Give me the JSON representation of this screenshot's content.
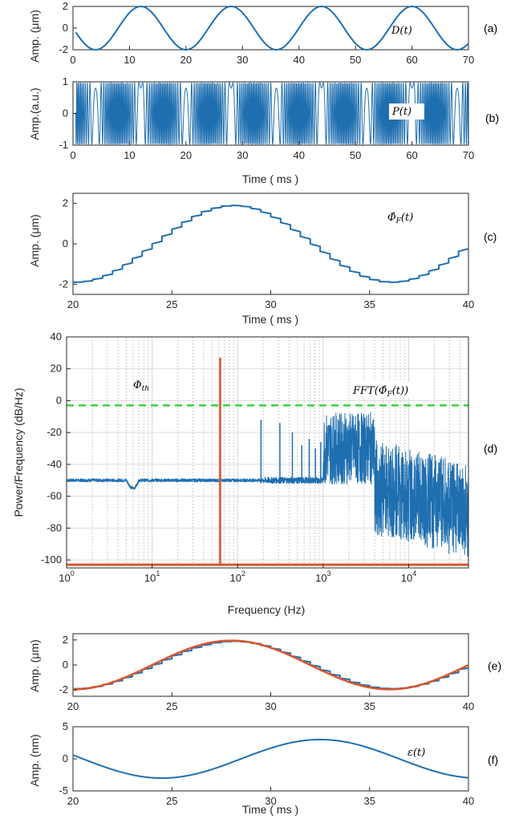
{
  "chart_data": [
    {
      "panel": "(a)",
      "type": "line",
      "annotation": "D(t)",
      "ylabel": "Amp. (μm)",
      "xlabel": "",
      "xlim": [
        0,
        70
      ],
      "ylim": [
        -2,
        2
      ],
      "xticks": [
        "0",
        "10",
        "20",
        "30",
        "40",
        "50",
        "60",
        "70"
      ],
      "yticks": [
        "2",
        "0",
        "-2"
      ],
      "series": [
        {
          "color": "#1f6fb0",
          "amplitude": 2,
          "period": 16,
          "peaks_at": [
            12,
            28,
            44,
            60
          ],
          "troughs_at": [
            4,
            20,
            36,
            52,
            68
          ]
        }
      ]
    },
    {
      "panel": "(b)",
      "type": "line",
      "annotation": "P(t)",
      "ylabel": "Amp.(a.u.)",
      "xlabel": "Time ( ms )",
      "xlim": [
        0,
        70
      ],
      "ylim": [
        -1,
        1
      ],
      "xticks": [
        "0",
        "10",
        "20",
        "30",
        "40",
        "50",
        "60",
        "70"
      ],
      "yticks": [
        "1",
        "0",
        "-1"
      ],
      "series": [
        {
          "color": "#1f6fb0",
          "description_values": {
            "amplitude": 1,
            "envelope_period": 16
          }
        }
      ]
    },
    {
      "panel": "(c)",
      "type": "line",
      "annotation": "Φ̂F(t)",
      "ylabel": "Amp. (μm)",
      "xlabel": "Time ( ms )",
      "xlim": [
        20,
        40
      ],
      "ylim": [
        -2.5,
        2.5
      ],
      "xticks": [
        "20",
        "25",
        "30",
        "35",
        "40"
      ],
      "yticks": [
        "2",
        "0",
        "-2"
      ],
      "series": [
        {
          "color": "#1f6fb0",
          "amplitude": 1.9,
          "period": 16,
          "peak_at": 28,
          "trough_at": 36
        }
      ]
    },
    {
      "panel": "(d)",
      "type": "line",
      "annotation": "FFT(Φ̂F(t))",
      "threshold_label": "Φth",
      "ylabel": "Power/Frequency (dB/Hz)",
      "xlabel": "Frequency (Hz)",
      "xscale": "log",
      "xlim": [
        1,
        50000
      ],
      "ylim": [
        -105,
        40
      ],
      "xticks": [
        "10",
        "10",
        "10",
        "10",
        "10"
      ],
      "xtick_exponents": [
        "0",
        "1",
        "2",
        "3",
        "4"
      ],
      "yticks": [
        "40",
        "20",
        "0",
        "-20",
        "-40",
        "-60",
        "-80",
        "-100"
      ],
      "threshold": {
        "value": -3,
        "color": "#39d23c",
        "style": "dashed"
      },
      "marker_line": {
        "frequency": 62.5,
        "top": 27,
        "baseline": -103,
        "color": "#d9542b"
      },
      "series": [
        {
          "color": "#1f6fb0",
          "noise_floor": -50,
          "harmonic_peaks": [
            [
              62.5,
              -50
            ],
            [
              187.5,
              -12
            ],
            [
              312,
              -14
            ],
            [
              437,
              -20
            ],
            [
              562,
              -28
            ],
            [
              1200,
              -18
            ],
            [
              2500,
              -14
            ],
            [
              3800,
              -16
            ]
          ]
        }
      ]
    },
    {
      "panel": "(e)",
      "type": "line",
      "ylabel": "Amp. (μm)",
      "xlabel": "",
      "xlim": [
        20,
        40
      ],
      "ylim": [
        -2.5,
        2.5
      ],
      "xticks": [
        "20",
        "25",
        "30",
        "35",
        "40"
      ],
      "yticks": [
        "2",
        "0",
        "-2"
      ],
      "series": [
        {
          "color": "#1f6fb0",
          "kind": "staircase",
          "amplitude": 1.9
        },
        {
          "color": "#d9542b",
          "kind": "smooth",
          "amplitude": 1.95
        }
      ]
    },
    {
      "panel": "(f)",
      "type": "line",
      "annotation": "ε(t)",
      "ylabel": "Amp. (nm)",
      "xlabel": "Time ( ms )",
      "xlim": [
        20,
        40
      ],
      "ylim": [
        -5,
        5
      ],
      "xticks": [
        "20",
        "25",
        "30",
        "35",
        "40"
      ],
      "yticks": [
        "5",
        "0",
        "-5"
      ],
      "series": [
        {
          "color": "#1f6fb0",
          "amplitude": 3,
          "period": 16,
          "trough_at": 24.5,
          "peak_at": 32.5
        }
      ]
    }
  ]
}
